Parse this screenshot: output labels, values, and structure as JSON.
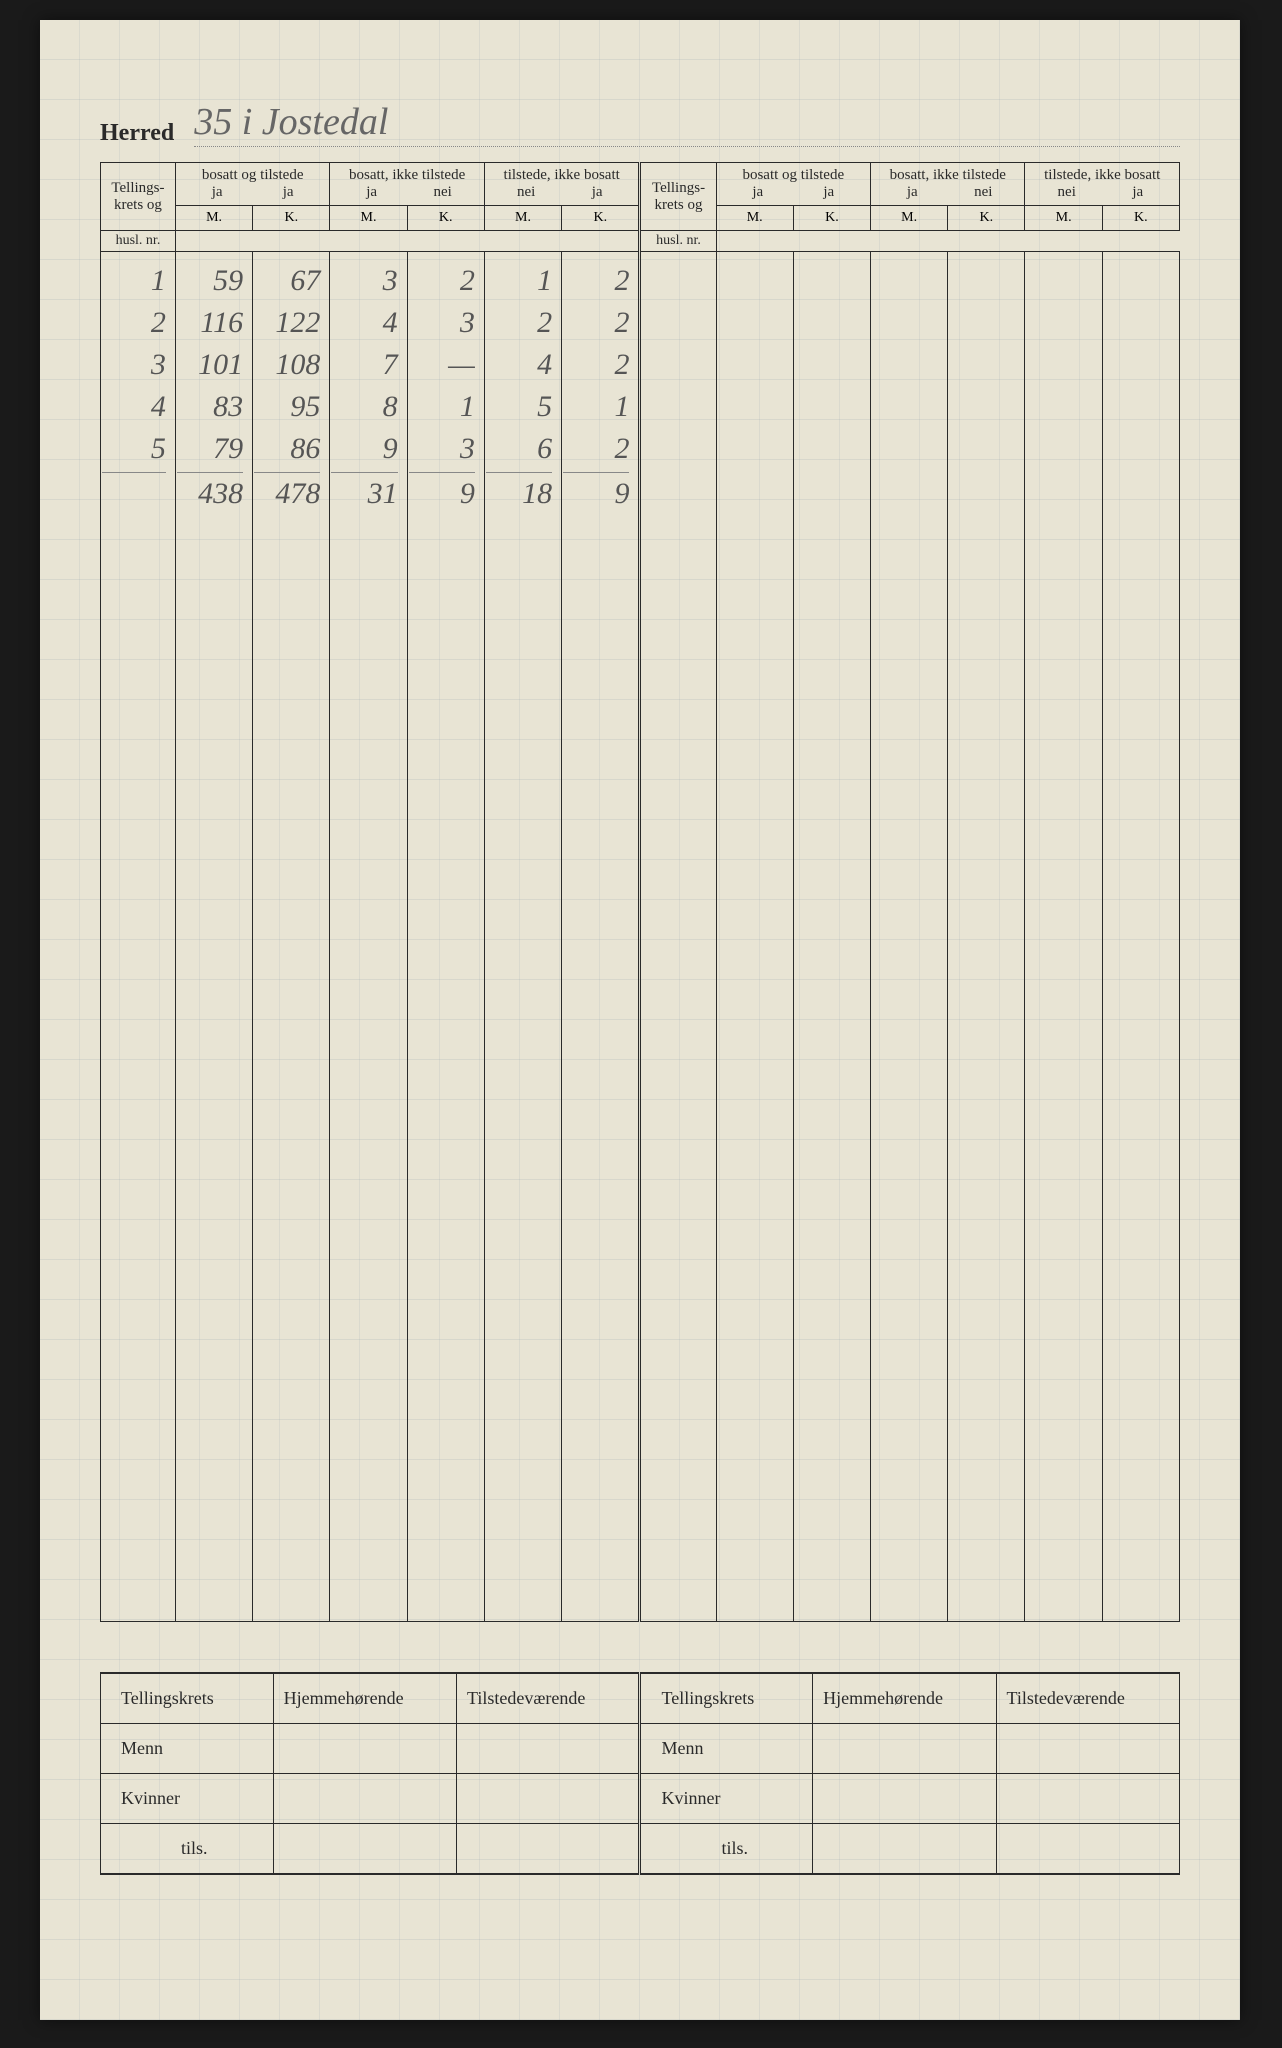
{
  "herred": {
    "label": "Herred",
    "value": "35 i Jostedal"
  },
  "headers": {
    "tellings": "Tellings-krets og husl. nr.",
    "tellings_l1": "Tellings-",
    "tellings_l2": "krets og",
    "tellings_l3": "husl. nr.",
    "group1": "bosatt og tilstede",
    "group2": "bosatt, ikke tilstede",
    "group3": "tilstede, ikke bosatt",
    "ja": "ja",
    "nei": "nei",
    "m": "M.",
    "k": "K."
  },
  "rows": [
    {
      "n": "1",
      "c1": "59",
      "c2": "67",
      "c3": "3",
      "c4": "2",
      "c5": "1",
      "c6": "2"
    },
    {
      "n": "2",
      "c1": "116",
      "c2": "122",
      "c3": "4",
      "c4": "3",
      "c5": "2",
      "c6": "2"
    },
    {
      "n": "3",
      "c1": "101",
      "c2": "108",
      "c3": "7",
      "c4": "—",
      "c5": "4",
      "c6": "2"
    },
    {
      "n": "4",
      "c1": "83",
      "c2": "95",
      "c3": "8",
      "c4": "1",
      "c5": "5",
      "c6": "1"
    },
    {
      "n": "5",
      "c1": "79",
      "c2": "86",
      "c3": "9",
      "c4": "3",
      "c5": "6",
      "c6": "2"
    }
  ],
  "totals": {
    "n": "",
    "c1": "438",
    "c2": "478",
    "c3": "31",
    "c4": "9",
    "c5": "18",
    "c6": "9"
  },
  "summary": {
    "tellingskrets": "Tellingskrets",
    "hjemme": "Hjemmehørende",
    "tilstede": "Tilstedeværende",
    "menn": "Menn",
    "kvinner": "Kvinner",
    "tils": "tils."
  },
  "colors": {
    "paper": "#e8e4d4",
    "ink": "#2a2a2a",
    "pencil": "#666",
    "grid": "rgba(120,140,160,0.15)"
  }
}
